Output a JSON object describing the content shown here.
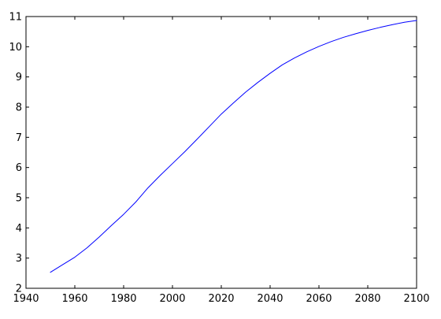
{
  "chart_data": {
    "type": "line",
    "title": "",
    "xlabel": "",
    "ylabel": "",
    "xlim": [
      1940,
      2100
    ],
    "ylim": [
      2,
      11
    ],
    "grid": false,
    "x_ticks": [
      1940,
      1960,
      1980,
      2000,
      2020,
      2040,
      2060,
      2080,
      2100
    ],
    "y_ticks": [
      2,
      3,
      4,
      5,
      6,
      7,
      8,
      9,
      10,
      11
    ],
    "x_tick_labels": [
      "1940",
      "1960",
      "1980",
      "2000",
      "2020",
      "2040",
      "2060",
      "2080",
      "2100"
    ],
    "y_tick_labels": [
      "2",
      "3",
      "4",
      "5",
      "6",
      "7",
      "8",
      "9",
      "10",
      "11"
    ],
    "series": [
      {
        "color": "#0000ff",
        "x": [
          1950,
          1955,
          1960,
          1965,
          1970,
          1975,
          1980,
          1985,
          1990,
          1995,
          2000,
          2005,
          2010,
          2015,
          2020,
          2025,
          2030,
          2035,
          2040,
          2045,
          2050,
          2055,
          2060,
          2065,
          2070,
          2075,
          2080,
          2085,
          2090,
          2095,
          2100
        ],
        "y": [
          2.53,
          2.78,
          3.03,
          3.34,
          3.7,
          4.08,
          4.45,
          4.86,
          5.33,
          5.74,
          6.13,
          6.52,
          6.93,
          7.35,
          7.77,
          8.14,
          8.5,
          8.82,
          9.12,
          9.4,
          9.63,
          9.83,
          10.01,
          10.17,
          10.31,
          10.43,
          10.54,
          10.64,
          10.73,
          10.81,
          10.87
        ]
      }
    ]
  }
}
